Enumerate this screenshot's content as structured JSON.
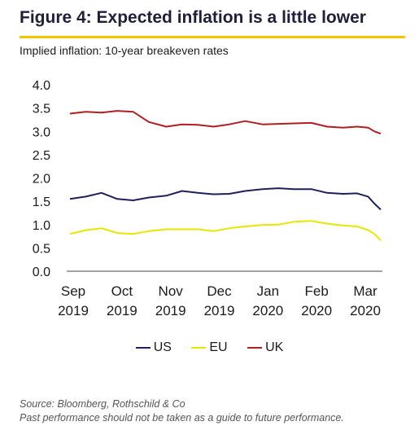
{
  "title": "Figure 4: Expected inflation is a little lower",
  "subtitle": "Implied inflation: 10-year breakeven rates",
  "footer": {
    "source": "Source: Bloomberg, Rothschild & Co",
    "disclaimer": "Past performance should not be taken as a guide to future performance."
  },
  "chart_data": {
    "type": "line",
    "title": "Figure 4: Expected inflation is a little lower",
    "subtitle": "Implied inflation: 10-year breakeven rates",
    "xlabel": "",
    "ylabel": "",
    "ylim": [
      0,
      4
    ],
    "yticks": [
      "0.0",
      "0.5",
      "1.0",
      "1.5",
      "2.0",
      "2.5",
      "3.0",
      "3.5",
      "4.0"
    ],
    "grid": false,
    "legend_position": "bottom",
    "x_tick_labels": [
      {
        "month": "Sep",
        "year": "2019"
      },
      {
        "month": "Oct",
        "year": "2019"
      },
      {
        "month": "Nov",
        "year": "2019"
      },
      {
        "month": "Dec",
        "year": "2019"
      },
      {
        "month": "Jan",
        "year": "2020"
      },
      {
        "month": "Feb",
        "year": "2020"
      },
      {
        "month": "Mar",
        "year": "2020"
      }
    ],
    "x": [
      "2019-09-01",
      "2019-09-11",
      "2019-09-21",
      "2019-10-01",
      "2019-10-11",
      "2019-10-21",
      "2019-11-01",
      "2019-11-11",
      "2019-11-21",
      "2019-12-01",
      "2019-12-11",
      "2019-12-21",
      "2020-01-01",
      "2020-01-11",
      "2020-01-21",
      "2020-02-01",
      "2020-02-11",
      "2020-02-21",
      "2020-03-01",
      "2020-03-08",
      "2020-03-12",
      "2020-03-16"
    ],
    "series": [
      {
        "name": "US",
        "color": "#1f1f5c",
        "values": [
          1.55,
          1.6,
          1.68,
          1.55,
          1.52,
          1.58,
          1.62,
          1.72,
          1.68,
          1.65,
          1.66,
          1.72,
          1.76,
          1.78,
          1.76,
          1.76,
          1.68,
          1.66,
          1.67,
          1.6,
          1.45,
          1.32
        ]
      },
      {
        "name": "EU",
        "color": "#e6e600",
        "values": [
          0.8,
          0.88,
          0.92,
          0.82,
          0.8,
          0.86,
          0.9,
          0.9,
          0.9,
          0.86,
          0.92,
          0.96,
          0.99,
          1.0,
          1.06,
          1.08,
          1.02,
          0.98,
          0.96,
          0.88,
          0.8,
          0.66
        ]
      },
      {
        "name": "UK",
        "color": "#b01e23",
        "values": [
          3.38,
          3.42,
          3.4,
          3.44,
          3.42,
          3.2,
          3.1,
          3.15,
          3.14,
          3.1,
          3.15,
          3.22,
          3.15,
          3.16,
          3.17,
          3.18,
          3.1,
          3.08,
          3.1,
          3.08,
          3.0,
          2.95
        ]
      }
    ]
  }
}
